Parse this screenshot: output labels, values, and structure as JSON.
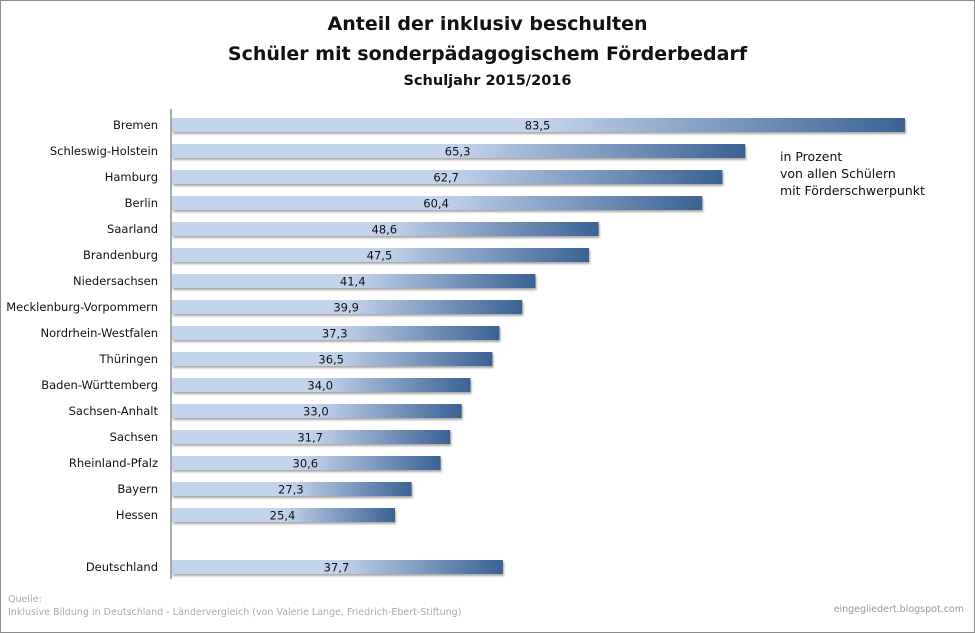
{
  "chart_data": {
    "type": "bar",
    "orientation": "horizontal",
    "title": "Anteil der inklusiv beschulten",
    "title_line2": "Schüler mit sonderpädagogischem Förderbedarf",
    "subtitle": "Schuljahr 2015/2016",
    "annotation": [
      "in Prozent",
      "von allen Schülern",
      "mit Förderschwerpunkt"
    ],
    "categories": [
      "Bremen",
      "Schleswig-Holstein",
      "Hamburg",
      "Berlin",
      "Saarland",
      "Brandenburg",
      "Niedersachsen",
      "Mecklenburg-Vorpommern",
      "Nordrhein-Westfalen",
      "Thüringen",
      "Baden-Württemberg",
      "Sachsen-Anhalt",
      "Sachsen",
      "Rheinland-Pfalz",
      "Bayern",
      "Hessen",
      "Deutschland"
    ],
    "values": [
      83.5,
      65.3,
      62.7,
      60.4,
      48.6,
      47.5,
      41.4,
      39.9,
      37.3,
      36.5,
      34.0,
      33.0,
      31.7,
      30.6,
      27.3,
      25.4,
      37.7
    ],
    "value_labels": [
      "83,5",
      "65,3",
      "62,7",
      "60,4",
      "48,6",
      "47,5",
      "41,4",
      "39,9",
      "37,3",
      "36,5",
      "34,0",
      "33,0",
      "31,7",
      "30,6",
      "27,3",
      "25,4",
      "37,7"
    ],
    "xlim": [
      0,
      83.5
    ],
    "grid": false,
    "legend": "none",
    "colors": {
      "bar_light": "#c3d3ec",
      "bar_dark": "#3a6295",
      "axis": "#555555"
    }
  },
  "footer": {
    "source_label": "Quelle:",
    "source_text": "Inklusive Bildung in Deutschland - Ländervergleich (von Valerie Lange, Friedrich-Ebert-Stiftung)",
    "credit": "eingegliedert.blogspot.com"
  }
}
